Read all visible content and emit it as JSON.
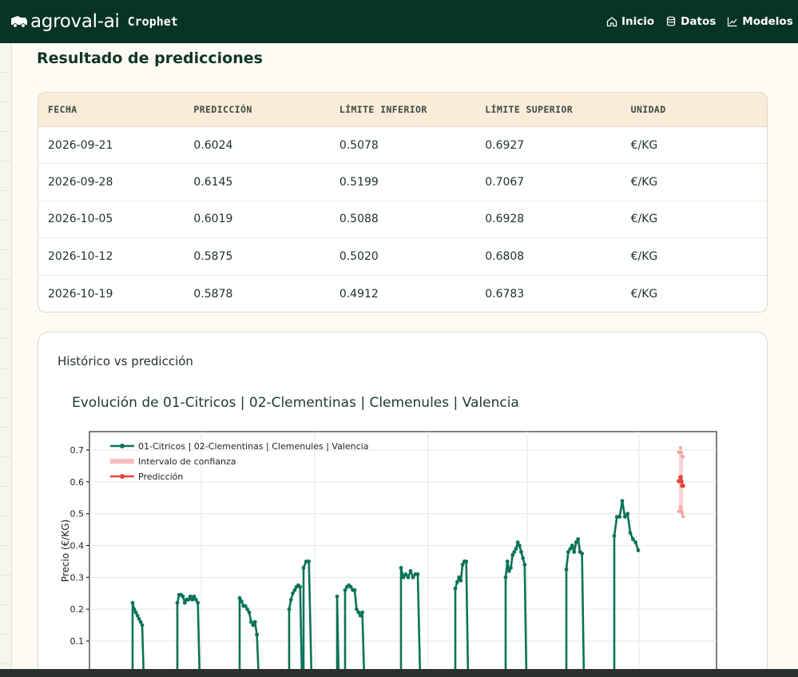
{
  "header": {
    "brand": "agroval-ai",
    "sub": "Crophet",
    "nav": [
      {
        "label": "Inicio",
        "icon": "home-icon"
      },
      {
        "label": "Datos",
        "icon": "database-icon"
      },
      {
        "label": "Modelos",
        "icon": "chart-line-icon"
      }
    ]
  },
  "results": {
    "title": "Resultado de predicciones",
    "columns": [
      "FECHA",
      "PREDICCIÓN",
      "LÍMITE INFERIOR",
      "LÍMITE SUPERIOR",
      "UNIDAD"
    ],
    "rows": [
      [
        "2026-09-21",
        "0.6024",
        "0.5078",
        "0.6927",
        "€/KG"
      ],
      [
        "2026-09-28",
        "0.6145",
        "0.5199",
        "0.7067",
        "€/KG"
      ],
      [
        "2026-10-05",
        "0.6019",
        "0.5088",
        "0.6928",
        "€/KG"
      ],
      [
        "2026-10-12",
        "0.5875",
        "0.5020",
        "0.6808",
        "€/KG"
      ],
      [
        "2026-10-19",
        "0.5878",
        "0.4912",
        "0.6783",
        "€/KG"
      ]
    ]
  },
  "chart_section": {
    "card_title": "Histórico vs predicción",
    "chart_title": "Evolución de 01-Citricos | 02-Clementinas | Clemenules | Valencia"
  },
  "chart_data": {
    "type": "line",
    "ylabel": "Precio (€/KG)",
    "xlabel": "",
    "ylim": [
      0,
      0.75
    ],
    "yticks": [
      "0.1",
      "0.2",
      "0.3",
      "0.4",
      "0.5",
      "0.6",
      "0.7"
    ],
    "grid": true,
    "legend_position": "top-left",
    "series": [
      {
        "name": "01-Citricos | 02-Clementinas | Clemenules | Valencia",
        "color": "#0b7358",
        "segments": [
          [
            0.22,
            0.2,
            0.19,
            0.18,
            0.17,
            0.16,
            0.15,
            0
          ],
          [
            0.22,
            0.245,
            0.245,
            0.24,
            0.22,
            0.23,
            0.23,
            0.24,
            0.23,
            0.24,
            0.23,
            0.22,
            0
          ],
          [
            0.235,
            0.225,
            0.21,
            0.21,
            0.2,
            0.19,
            0.16,
            0.15,
            0.16,
            0.12,
            0
          ],
          [
            0.2,
            0.23,
            0.25,
            0.26,
            0.27,
            0.275,
            0.27,
            0
          ],
          [
            0.33,
            0.35,
            0.35,
            0
          ],
          [
            0.24,
            0
          ],
          [
            0.26,
            0.27,
            0.275,
            0.27,
            0.26,
            0.26,
            0.2,
            0.19,
            0.18,
            0.19,
            0
          ],
          [
            0.33,
            0.3,
            0.31,
            0.3,
            0.32,
            0.3,
            0.31,
            0.31,
            0
          ],
          [
            0.265,
            0.285,
            0.3,
            0.29,
            0.34,
            0.35,
            0.35,
            0
          ],
          [
            0.3,
            0.35,
            0.32,
            0.33,
            0.37,
            0.38,
            0.39,
            0.41,
            0.4,
            0.38,
            0.36,
            0.34,
            0
          ],
          [
            0.325,
            0.38,
            0.39,
            0.4,
            0.38,
            0.41,
            0.42,
            0.38,
            0.375,
            0
          ],
          [
            0.43,
            0.49,
            0.49,
            0.54,
            0.49,
            0.5,
            0.44,
            0.42,
            0.41,
            0.385
          ]
        ]
      },
      {
        "name": "Intervalo de confianza",
        "color": "#f2a0a0",
        "lower": [
          0.5078,
          0.5199,
          0.5088,
          0.502,
          0.4912
        ],
        "upper": [
          0.6927,
          0.7067,
          0.6928,
          0.6808,
          0.6783
        ]
      },
      {
        "name": "Predicción",
        "color": "#e8453c",
        "x": [
          "2026-09-21",
          "2026-09-28",
          "2026-10-05",
          "2026-10-12",
          "2026-10-19"
        ],
        "values": [
          0.6024,
          0.6145,
          0.6019,
          0.5875,
          0.5878
        ]
      }
    ]
  }
}
